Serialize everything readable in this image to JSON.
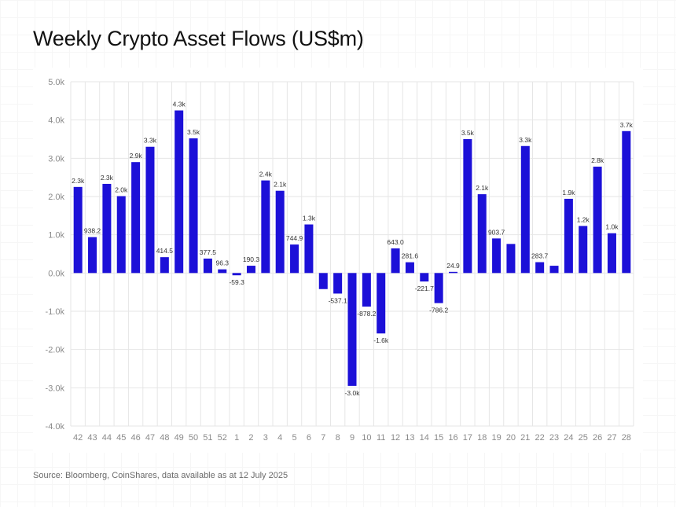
{
  "title": "Weekly Crypto Asset Flows (US$m)",
  "source": "Source: Bloomberg, CoinShares, data available as at 12 July 2025",
  "colors": {
    "bar": "#1c10d8",
    "grid": "#e6e6e6",
    "tick": "#8a8a8a",
    "label": "#333333"
  },
  "chart_data": {
    "type": "bar",
    "title": "Weekly Crypto Asset Flows (US$m)",
    "xlabel": "",
    "ylabel": "",
    "ylim": [
      -4000,
      5000
    ],
    "grid": true,
    "y_ticks": [
      {
        "value": 5000,
        "label": "5.0k"
      },
      {
        "value": 4000,
        "label": "4.0k"
      },
      {
        "value": 3000,
        "label": "3.0k"
      },
      {
        "value": 2000,
        "label": "2.0k"
      },
      {
        "value": 1000,
        "label": "1.0k"
      },
      {
        "value": 0,
        "label": "0.0k"
      },
      {
        "value": -1000,
        "label": "-1.0k"
      },
      {
        "value": -2000,
        "label": "-2.0k"
      },
      {
        "value": -3000,
        "label": "-3.0k"
      },
      {
        "value": -4000,
        "label": "-4.0k"
      }
    ],
    "categories": [
      "42",
      "43",
      "44",
      "45",
      "46",
      "47",
      "48",
      "49",
      "50",
      "51",
      "52",
      "1",
      "2",
      "3",
      "4",
      "5",
      "6",
      "7",
      "8",
      "9",
      "10",
      "11",
      "12",
      "13",
      "14",
      "15",
      "16",
      "17",
      "18",
      "19",
      "20",
      "21",
      "22",
      "23",
      "24",
      "25",
      "26",
      "27",
      "28"
    ],
    "values": [
      2250,
      938.2,
      2330,
      2010,
      2900,
      3300,
      414.5,
      4250,
      3520,
      377.5,
      96.3,
      -59.3,
      190.3,
      2420,
      2150,
      744.9,
      1270,
      -420,
      -537.1,
      -2950,
      -878.2,
      -1580,
      643.0,
      281.6,
      -221.7,
      -786.2,
      24.9,
      3500,
      2060,
      903.7,
      760,
      3320,
      283.7,
      190,
      1940,
      1230,
      2780,
      1040,
      3710
    ],
    "data_labels": [
      "2.3k",
      "938.2",
      "2.3k",
      "2.0k",
      "2.9k",
      "3.3k",
      "414.5",
      "4.3k",
      "3.5k",
      "377.5",
      "96.3",
      "-59.3",
      "190.3",
      "2.4k",
      "2.1k",
      "744.9",
      "1.3k",
      "",
      "-537.1",
      "-3.0k",
      "-878.2",
      "-1.6k",
      "643.0",
      "281.6",
      "-221.7",
      "-786.2",
      "24.9",
      "3.5k",
      "2.1k",
      "903.7",
      "",
      "3.3k",
      "283.7",
      "",
      "1.9k",
      "1.2k",
      "2.8k",
      "1.0k",
      "3.7k"
    ]
  }
}
